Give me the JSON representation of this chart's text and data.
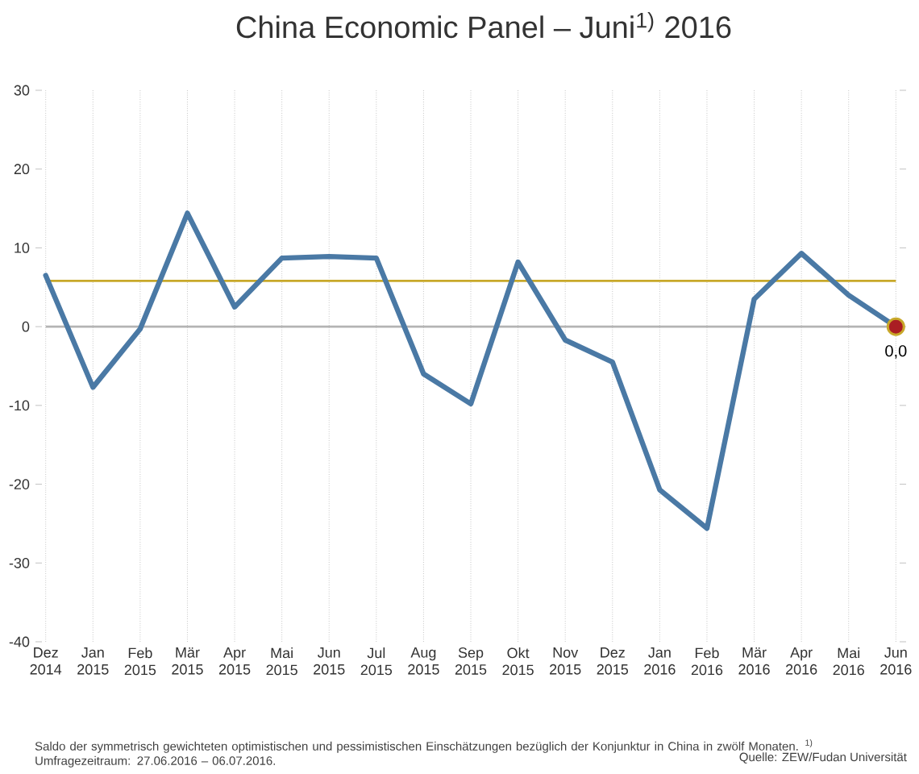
{
  "chart_data": {
    "type": "line",
    "title": "China Economic Panel – Juni$^{1)}$ 2016",
    "categories": [
      "Dez 2014",
      "Jan 2015",
      "Feb 2015",
      "Mär 2015",
      "Apr 2015",
      "Mai 2015",
      "Jun 2015",
      "Jul 2015",
      "Aug 2015",
      "Sep 2015",
      "Okt 2015",
      "Nov 2015",
      "Dez 2015",
      "Jan 2016",
      "Feb 2016",
      "Mär 2016",
      "Apr 2016",
      "Mai 2016",
      "Jun 2016"
    ],
    "series": [
      {
        "color": "#4a79a5",
        "values": [
          6.5,
          -7.7,
          -0.3,
          14.4,
          2.5,
          8.7,
          8.9,
          8.7,
          -6.0,
          -9.8,
          8.2,
          -1.7,
          -4.5,
          -20.7,
          -25.6,
          3.5,
          9.3,
          4.0,
          0.0
        ],
        "value_labels": [
          null,
          null,
          null,
          null,
          null,
          null,
          null,
          null,
          null,
          null,
          null,
          null,
          null,
          null,
          null,
          null,
          null,
          null,
          "0,0"
        ]
      }
    ],
    "ylim": [
      -40,
      30
    ],
    "yticks": [
      -40,
      -30,
      -20,
      -10,
      0,
      10,
      20,
      30
    ],
    "grid": "x",
    "ref_lines": [
      {
        "axis": "y",
        "value": 0,
        "color": "#b4b4b4"
      },
      {
        "axis": "y",
        "value": 5.8,
        "color": "#c8a82a"
      }
    ],
    "annotations": [
      "Saldo der symmetrisch gewichteten optimistischen und pessimistischen Einschätzungen bezüglich der Konjunktur in China in zwölf Monaten. $^{1)}$ Umfragezeitraum: 27.06.2016 – 06.07.2016.",
      "Quelle: ZEW/Fudan Universität"
    ]
  }
}
